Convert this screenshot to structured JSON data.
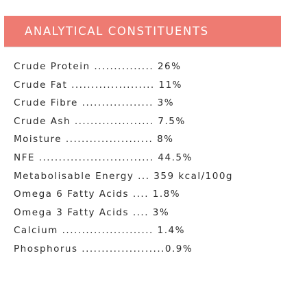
{
  "header": {
    "title": "ANALYTICAL CONSTITUENTS",
    "background_color": "#ee7b72",
    "text_color": "#ffffff"
  },
  "constituents": [
    {
      "text": "Crude Protein ............... 26%"
    },
    {
      "text": "Crude Fat ..................... 11%"
    },
    {
      "text": "Crude Fibre .................. 3%"
    },
    {
      "text": "Crude Ash .................... 7.5%"
    },
    {
      "text": "Moisture ...................... 8%"
    },
    {
      "text": "NFE ............................. 44.5%"
    },
    {
      "text": "Metabolisable Energy ... 359 kcal/100g"
    },
    {
      "text": "Omega 6 Fatty Acids .... 1.8%"
    },
    {
      "text": "Omega 3 Fatty Acids .... 3%"
    },
    {
      "text": "Calcium ....................... 1.4%"
    },
    {
      "text": "Phosphorus .....................0.9%"
    }
  ]
}
